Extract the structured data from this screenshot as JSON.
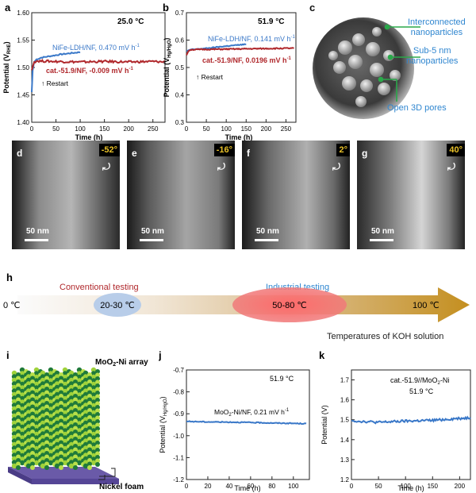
{
  "panels": {
    "a": {
      "letter": "a",
      "temp": "25.0 °C",
      "ylabel_main": "Potential (V",
      "ylabel_sub": "RHE",
      "ylabel_end": ")",
      "xlabel": "Time (h)",
      "legend_blue": "NiFe-LDH/NF, 0.470 mV h",
      "legend_red": "cat.-51.9/NF, -0.009 mV h",
      "sup": "-1",
      "restart": "Restart",
      "yticks": [
        "1.40",
        "1.45",
        "1.50",
        "1.55",
        "1.60"
      ],
      "xticks": [
        "0",
        "50",
        "100",
        "150",
        "200",
        "250"
      ]
    },
    "b": {
      "letter": "b",
      "temp": "51.9 °C",
      "ylabel_main": "Potential (V",
      "ylabel_sub": "Hg/HgO",
      "ylabel_end": ")",
      "xlabel": "Time (h)",
      "legend_blue": "NiFe-LDH/NF, 0.141 mV h",
      "legend_red": "cat.-51.9/NF, 0.0196 mV h",
      "sup": "-1",
      "restart": "Restart",
      "yticks": [
        "0.3",
        "0.4",
        "0.5",
        "0.6",
        "0.7"
      ],
      "xticks": [
        "0",
        "50",
        "100",
        "150",
        "200",
        "250"
      ]
    },
    "c": {
      "letter": "c",
      "labels": [
        "Interconnected",
        "nanoparticles",
        "Sub-5 nm",
        "nanoparticles",
        "Open 3D pores"
      ]
    },
    "tem": [
      {
        "letter": "d",
        "angle": "-52°",
        "scale": "50 nm"
      },
      {
        "letter": "e",
        "angle": "-16°",
        "scale": "50 nm"
      },
      {
        "letter": "f",
        "angle": "2°",
        "scale": "50 nm"
      },
      {
        "letter": "g",
        "angle": "40°",
        "scale": "50 nm"
      }
    ],
    "h": {
      "letter": "h",
      "conventional": "Conventional testing",
      "industrial": "Industrial testing",
      "t0": "0 ℃",
      "t_conv": "20-30 ℃",
      "t_ind": "50-80 ℃",
      "t_max": "100 ℃",
      "caption": "Temperatures of KOH solution"
    },
    "i": {
      "letter": "i",
      "array_label_a": "MoO",
      "array_label_sub": "2",
      "array_label_b": "-Ni array",
      "foam": "Nickel foam"
    },
    "j": {
      "letter": "j",
      "temp": "51.9 °C",
      "ylabel_main": "Potential (V",
      "ylabel_sub": "Hg/HgO",
      "ylabel_end": ")",
      "xlabel": "Time (h)",
      "legend_a": "MoO",
      "legend_sub": "2",
      "legend_b": "-Ni/NF, 0.21 mV h",
      "sup": "-1",
      "yticks": [
        "-1.2",
        "-1.1",
        "-1.0",
        "-0.9",
        "-0.8",
        "-0.7"
      ],
      "xticks": [
        "0",
        "20",
        "40",
        "60",
        "80",
        "100"
      ]
    },
    "k": {
      "letter": "k",
      "legend_a": "cat.-51.9//MoO",
      "legend_sub": "2",
      "legend_b": "-Ni",
      "temp": "51.9 °C",
      "ylabel": "Potential (V)",
      "xlabel": "Time (h)",
      "yticks": [
        "1.2",
        "1.3",
        "1.4",
        "1.5",
        "1.6",
        "1.7"
      ],
      "xticks": [
        "0",
        "50",
        "100",
        "150",
        "200"
      ]
    }
  },
  "colors": {
    "blue": "#3a78c8",
    "red": "#b0282c",
    "conv": "#b0282c",
    "ind": "#2f86d0",
    "arrow": "#c99a2e",
    "green": "#2aa84a"
  },
  "chart_data": [
    {
      "type": "line",
      "title": "25.0 °C",
      "xlabel": "Time (h)",
      "ylabel": "Potential (V RHE)",
      "xlim": [
        0,
        275
      ],
      "ylim": [
        1.4,
        1.6
      ],
      "series": [
        {
          "name": "NiFe-LDH/NF, 0.470 mV h-1",
          "x": [
            0,
            2,
            5,
            10,
            20,
            40,
            60,
            80,
            100
          ],
          "values": [
            1.455,
            1.495,
            1.51,
            1.515,
            1.518,
            1.521,
            1.524,
            1.526,
            1.528
          ]
        },
        {
          "name": "cat.-51.9/NF, -0.009 mV h-1",
          "x": [
            0,
            5,
            10,
            50,
            100,
            150,
            200,
            250,
            275
          ],
          "values": [
            1.495,
            1.51,
            1.512,
            1.511,
            1.51,
            1.511,
            1.51,
            1.511,
            1.51
          ]
        }
      ]
    },
    {
      "type": "line",
      "title": "51.9 °C",
      "xlabel": "Time (h)",
      "ylabel": "Potential (V Hg/HgO)",
      "xlim": [
        0,
        275
      ],
      "ylim": [
        0.3,
        0.7
      ],
      "series": [
        {
          "name": "NiFe-LDH/NF, 0.141 mV h-1",
          "x": [
            0,
            10,
            50,
            100,
            150
          ],
          "values": [
            0.56,
            0.565,
            0.57,
            0.578,
            0.585
          ]
        },
        {
          "name": "cat.-51.9/NF, 0.0196 mV h-1",
          "x": [
            0,
            5,
            10,
            50,
            100,
            150,
            200,
            250,
            270
          ],
          "values": [
            0.545,
            0.56,
            0.565,
            0.566,
            0.567,
            0.568,
            0.569,
            0.57,
            0.57
          ]
        }
      ]
    },
    {
      "type": "line",
      "title": "51.9 °C",
      "xlabel": "Time (h)",
      "ylabel": "Potential (V Hg/HgO)",
      "xlim": [
        0,
        115
      ],
      "ylim": [
        -1.2,
        -0.7
      ],
      "series": [
        {
          "name": "MoO2-Ni/NF, 0.21 mV h-1",
          "x": [
            0,
            20,
            40,
            60,
            80,
            100,
            112
          ],
          "values": [
            -0.935,
            -0.937,
            -0.938,
            -0.94,
            -0.942,
            -0.944,
            -0.945
          ]
        }
      ]
    },
    {
      "type": "line",
      "title": "51.9 °C",
      "xlabel": "Time (h)",
      "ylabel": "Potential (V)",
      "xlim": [
        0,
        220
      ],
      "ylim": [
        1.2,
        1.75
      ],
      "series": [
        {
          "name": "cat.-51.9//MoO2-Ni",
          "x": [
            0,
            50,
            100,
            150,
            200,
            220
          ],
          "values": [
            1.495,
            1.487,
            1.493,
            1.497,
            1.507,
            1.51
          ]
        }
      ]
    }
  ]
}
